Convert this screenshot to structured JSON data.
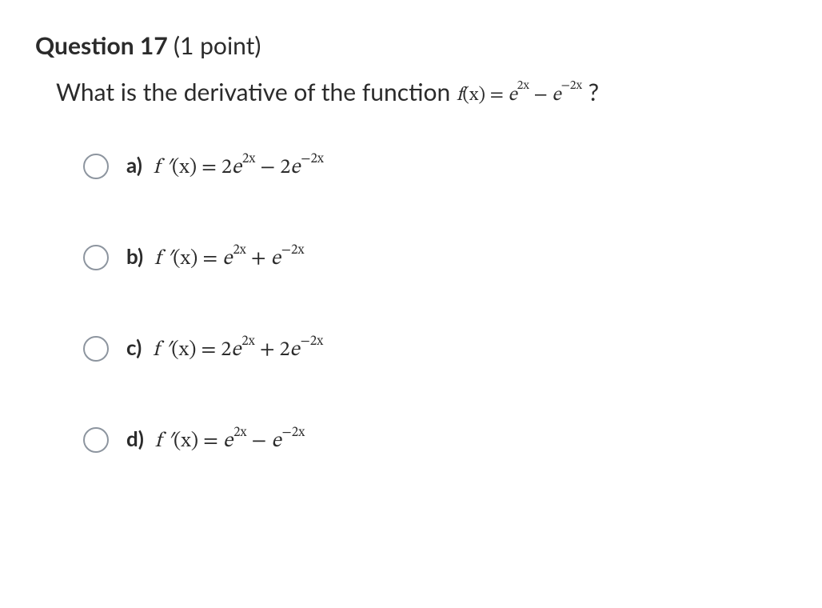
{
  "question": {
    "label": "Question 17",
    "points": "(1 point)",
    "stem_prefix": "What is the derivative of the function ",
    "stem_func_lhs": "f",
    "stem_func_arg": "(x)",
    "stem_eq": " = ",
    "stem_t1_base": "e",
    "stem_t1_exp": "2x",
    "stem_minus": " − ",
    "stem_t2_base": "e",
    "stem_t2_exp": "−2x",
    "stem_suffix": " ?"
  },
  "common": {
    "fprime_lhs": "f ′",
    "fprime_arg": "(x)",
    "eq": " = "
  },
  "options": {
    "a": {
      "letter": "a)",
      "c1": "2",
      "b1": "e",
      "e1": "2x",
      "op": " − ",
      "c2": "2",
      "b2": "e",
      "e2": "−2x"
    },
    "b": {
      "letter": "b)",
      "c1": "",
      "b1": "e",
      "e1": "2x",
      "op": " + ",
      "c2": "",
      "b2": "e",
      "e2": "−2x"
    },
    "c": {
      "letter": "c)",
      "c1": "2",
      "b1": "e",
      "e1": "2x",
      "op": " + ",
      "c2": "2",
      "b2": "e",
      "e2": "−2x"
    },
    "d": {
      "letter": "d)",
      "c1": "",
      "b1": "e",
      "e1": "2x",
      "op": " − ",
      "c2": "",
      "b2": "e",
      "e2": "−2x"
    }
  },
  "style": {
    "text_color": "#2b2b2b",
    "radio_border": "#8d959f",
    "background": "#ffffff",
    "heading_fontsize": 30,
    "stem_fontsize": 30,
    "option_fontsize": 26
  }
}
